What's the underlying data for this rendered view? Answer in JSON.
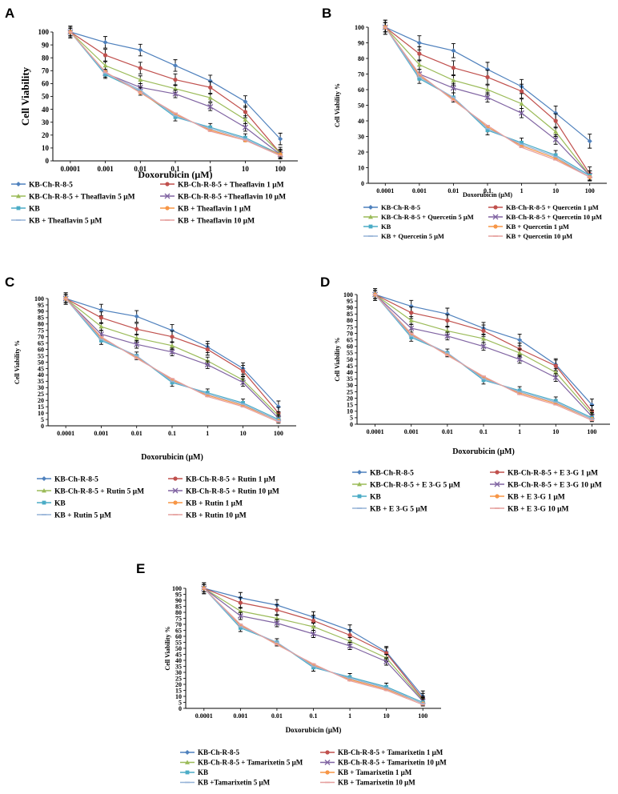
{
  "colors": {
    "KB-Ch-R-8-5": "#4f81bd",
    "KB-Ch-R-8-5 + 1 μM": "#c0504d",
    "KB-Ch-R-8-5 + 5 μM": "#9bbb59",
    "KB-Ch-R-8-5 + 10 μM": "#8064a2",
    "KB": "#4bacc6",
    "KB + 1 μM": "#f79646",
    "KB + 5 μM": "#95b3d7",
    "KB + 10 μM": "#e6a09e"
  },
  "chart_data": [
    {
      "panel": "A",
      "type": "line",
      "xlabel": "Doxorubicin  (μM)",
      "ylabel": "Cell  Viability",
      "categories": [
        "0.0001",
        "0.001",
        "0.01",
        "0.1",
        "1",
        "10",
        "100"
      ],
      "ylim": [
        0,
        100
      ],
      "yticks": [
        0,
        10,
        20,
        30,
        40,
        50,
        60,
        70,
        80,
        90,
        100
      ],
      "series": [
        {
          "name": "KB-Ch-R-8-5",
          "values": [
            100,
            92,
            86,
            74,
            62,
            46,
            17
          ]
        },
        {
          "name": "KB-Ch-R-8-5 + Theaflavin 1 μM",
          "values": [
            100,
            82,
            72,
            63,
            57,
            38,
            6
          ]
        },
        {
          "name": "KB-Ch-R-8-5 + Theaflavin 5 μM",
          "values": [
            100,
            74,
            63,
            56,
            49,
            32,
            6
          ]
        },
        {
          "name": "KB-Ch-R-8-5 +Theaflavin 10 μM",
          "values": [
            100,
            68,
            57,
            52,
            42,
            26,
            5
          ]
        },
        {
          "name": "KB",
          "values": [
            100,
            67,
            54,
            34,
            26,
            18,
            5
          ]
        },
        {
          "name": "KB + Theaflavin 1 μM",
          "values": [
            100,
            69,
            53,
            36,
            24,
            16,
            5
          ]
        },
        {
          "name": "KB + Theaflavin 5 μM",
          "values": [
            100,
            68,
            55,
            35,
            25,
            17,
            4
          ]
        },
        {
          "name": "KB + Theaflavin 10 μM",
          "values": [
            100,
            69,
            53,
            37,
            23,
            16,
            4
          ]
        }
      ]
    },
    {
      "panel": "B",
      "type": "line",
      "xlabel": "Doxorubicin (μM)",
      "ylabel": "Cell Viability %",
      "categories": [
        "0.0001",
        "0.001",
        "0.01",
        "0.1",
        "1",
        "10",
        "100"
      ],
      "ylim": [
        0,
        100
      ],
      "yticks": [
        0,
        10,
        20,
        30,
        40,
        50,
        60,
        70,
        80,
        90,
        100
      ],
      "series": [
        {
          "name": "KB-Ch-R-8-5",
          "values": [
            100,
            90,
            85,
            73,
            62,
            45,
            27
          ]
        },
        {
          "name": "KB-Ch-R-8-5 + Quercetin 1 μM",
          "values": [
            100,
            83,
            74,
            68,
            59,
            40,
            6
          ]
        },
        {
          "name": "KB-Ch-R-8-5 + Quercetin 5 μM",
          "values": [
            100,
            76,
            66,
            60,
            51,
            33,
            5
          ]
        },
        {
          "name": "KB-Ch-R-8-5 + Quercetin 10 μM",
          "values": [
            100,
            70,
            61,
            55,
            45,
            28,
            5
          ]
        },
        {
          "name": "KB",
          "values": [
            100,
            67,
            55,
            34,
            26,
            18,
            5
          ]
        },
        {
          "name": "KB + Quercetin 1 μM",
          "values": [
            100,
            69,
            54,
            36,
            24,
            16,
            4
          ]
        },
        {
          "name": "KB + Quercetin 5 μM",
          "values": [
            100,
            68,
            55,
            35,
            25,
            17,
            4
          ]
        },
        {
          "name": "KB + Quercetin 10 μM",
          "values": [
            100,
            70,
            53,
            37,
            23,
            15,
            4
          ]
        }
      ]
    },
    {
      "panel": "C",
      "type": "line",
      "xlabel": "Doxorubicin (μM)",
      "ylabel": "Cell Viability %",
      "categories": [
        "0.0001",
        "0.001",
        "0.01",
        "0.1",
        "1",
        "10",
        "100"
      ],
      "ylim": [
        0,
        100
      ],
      "yticks": [
        0,
        5,
        10,
        15,
        20,
        25,
        30,
        35,
        40,
        45,
        50,
        55,
        60,
        65,
        70,
        75,
        80,
        85,
        90,
        95,
        100
      ],
      "series": [
        {
          "name": "KB-Ch-R-8-5",
          "values": [
            100,
            91,
            86,
            75,
            62,
            45,
            15
          ]
        },
        {
          "name": "KB-Ch-R-8-5 + Rutin 1 μM",
          "values": [
            100,
            85,
            76,
            70,
            60,
            43,
            10
          ]
        },
        {
          "name": "KB-Ch-R-8-5 + Rutin 5 μM",
          "values": [
            100,
            78,
            69,
            63,
            51,
            36,
            8
          ]
        },
        {
          "name": "KB-Ch-R-8-5 + Rutin 10 μM",
          "values": [
            100,
            72,
            64,
            58,
            48,
            34,
            6
          ]
        },
        {
          "name": "KB",
          "values": [
            100,
            67,
            55,
            34,
            26,
            18,
            5
          ]
        },
        {
          "name": "KB + Rutin 1 μM",
          "values": [
            100,
            69,
            54,
            36,
            24,
            16,
            4
          ]
        },
        {
          "name": "KB + Rutin 5 μM",
          "values": [
            100,
            68,
            55,
            35,
            25,
            17,
            4
          ]
        },
        {
          "name": "KB + Rutin 10 μM",
          "values": [
            100,
            70,
            53,
            37,
            23,
            15,
            3
          ]
        }
      ]
    },
    {
      "panel": "D",
      "type": "line",
      "xlabel": "Doxorubicin (μM)",
      "ylabel": "Cell Viability %",
      "categories": [
        "0.0001",
        "0.001",
        "0.01",
        "0.1",
        "1",
        "10",
        "100"
      ],
      "ylim": [
        0,
        100
      ],
      "yticks": [
        0,
        5,
        10,
        15,
        20,
        25,
        30,
        35,
        40,
        45,
        50,
        55,
        60,
        65,
        70,
        75,
        80,
        85,
        90,
        95,
        100
      ],
      "series": [
        {
          "name": "KB-Ch-R-8-5",
          "values": [
            100,
            91,
            85,
            74,
            65,
            46,
            15
          ]
        },
        {
          "name": "KB-Ch-R-8-5 + E 3-G 1 μM",
          "values": [
            100,
            86,
            80,
            72,
            58,
            45,
            10
          ]
        },
        {
          "name": "KB-Ch-R-8-5 + E 3-G 5 μM",
          "values": [
            100,
            80,
            72,
            66,
            55,
            40,
            8
          ]
        },
        {
          "name": "KB-Ch-R-8-5 + E 3-G 10 μM",
          "values": [
            100,
            74,
            68,
            60,
            50,
            36,
            6
          ]
        },
        {
          "name": "KB",
          "values": [
            100,
            67,
            55,
            34,
            26,
            18,
            5
          ]
        },
        {
          "name": "KB + E 3-G 1 μM",
          "values": [
            100,
            69,
            54,
            36,
            24,
            16,
            4
          ]
        },
        {
          "name": "KB + E 3-G 5 μM",
          "values": [
            100,
            68,
            55,
            35,
            25,
            17,
            4
          ]
        },
        {
          "name": "KB + E 3-G 10 μM",
          "values": [
            100,
            70,
            53,
            37,
            23,
            15,
            3
          ]
        }
      ]
    },
    {
      "panel": "E",
      "type": "line",
      "xlabel": "Doxorubicin (μM)",
      "ylabel": "Cell Viability %",
      "categories": [
        "0.0001",
        "0.001",
        "0.01",
        "0.1",
        "1",
        "10",
        "100"
      ],
      "ylim": [
        0,
        100
      ],
      "yticks": [
        0,
        5,
        10,
        15,
        20,
        25,
        30,
        35,
        40,
        45,
        50,
        55,
        60,
        65,
        70,
        75,
        80,
        85,
        90,
        95,
        100
      ],
      "series": [
        {
          "name": "KB-Ch-R-8-5",
          "values": [
            100,
            92,
            86,
            76,
            65,
            47,
            10
          ]
        },
        {
          "name": "KB-Ch-R-8-5 + Tamarixetin 1 μM",
          "values": [
            100,
            88,
            82,
            73,
            61,
            46,
            8
          ]
        },
        {
          "name": "KB-Ch-R-8-5 + Tamarixetin 5 μM",
          "values": [
            100,
            81,
            75,
            68,
            56,
            42,
            7
          ]
        },
        {
          "name": "KB-Ch-R-8-5 + Tamarixetin 10 μM",
          "values": [
            100,
            77,
            71,
            62,
            52,
            39,
            6
          ]
        },
        {
          "name": "KB",
          "values": [
            100,
            67,
            55,
            34,
            26,
            18,
            5
          ]
        },
        {
          "name": "KB + Tamarixetin 1 μM",
          "values": [
            100,
            69,
            54,
            36,
            24,
            16,
            4
          ]
        },
        {
          "name": "KB +Tamarixetin 5 μM",
          "values": [
            100,
            68,
            55,
            35,
            25,
            17,
            4
          ]
        },
        {
          "name": "KB + Tamarixetin 10 μM",
          "values": [
            100,
            70,
            53,
            37,
            23,
            15,
            3
          ]
        }
      ]
    }
  ]
}
